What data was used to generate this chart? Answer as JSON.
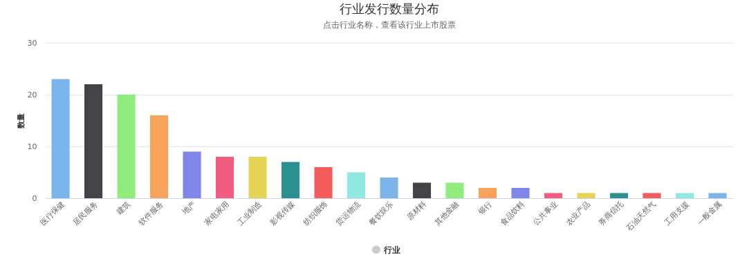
{
  "chart_data": {
    "type": "bar",
    "title": "行业发行数量分布",
    "subtitle": "点击行业名称，查看该行业上市股票",
    "ylabel": "数量",
    "categories": [
      "医疗保健",
      "居民服务",
      "建筑",
      "软件服务",
      "地产",
      "家电家用",
      "工业制造",
      "影视传媒",
      "纺织服饰",
      "货运物流",
      "餐饮娱乐",
      "原材料",
      "其他金融",
      "银行",
      "食品饮料",
      "公共事业",
      "农业产品",
      "券商信托",
      "石油天然气",
      "工用支援",
      "一般金属"
    ],
    "series": [
      {
        "name": "行业",
        "values": [
          23,
          22,
          20,
          16,
          9,
          8,
          8,
          7,
          6,
          5,
          4,
          3,
          3,
          2,
          2,
          1,
          1,
          1,
          1,
          1,
          1
        ],
        "colors": [
          "#7cb5ec",
          "#434348",
          "#90ed7d",
          "#f7a35c",
          "#8085e9",
          "#f15c80",
          "#e4d354",
          "#2b908f",
          "#f45b5b",
          "#91e8e1",
          "#7cb5ec",
          "#434348",
          "#90ed7d",
          "#f7a35c",
          "#8085e9",
          "#f15c80",
          "#e4d354",
          "#2b908f",
          "#f45b5b",
          "#91e8e1",
          "#7cb5ec"
        ]
      }
    ],
    "ylim": [
      0,
      30
    ],
    "yticks": [
      0,
      10,
      20,
      30
    ],
    "grid": "y",
    "legend": "bottom"
  }
}
